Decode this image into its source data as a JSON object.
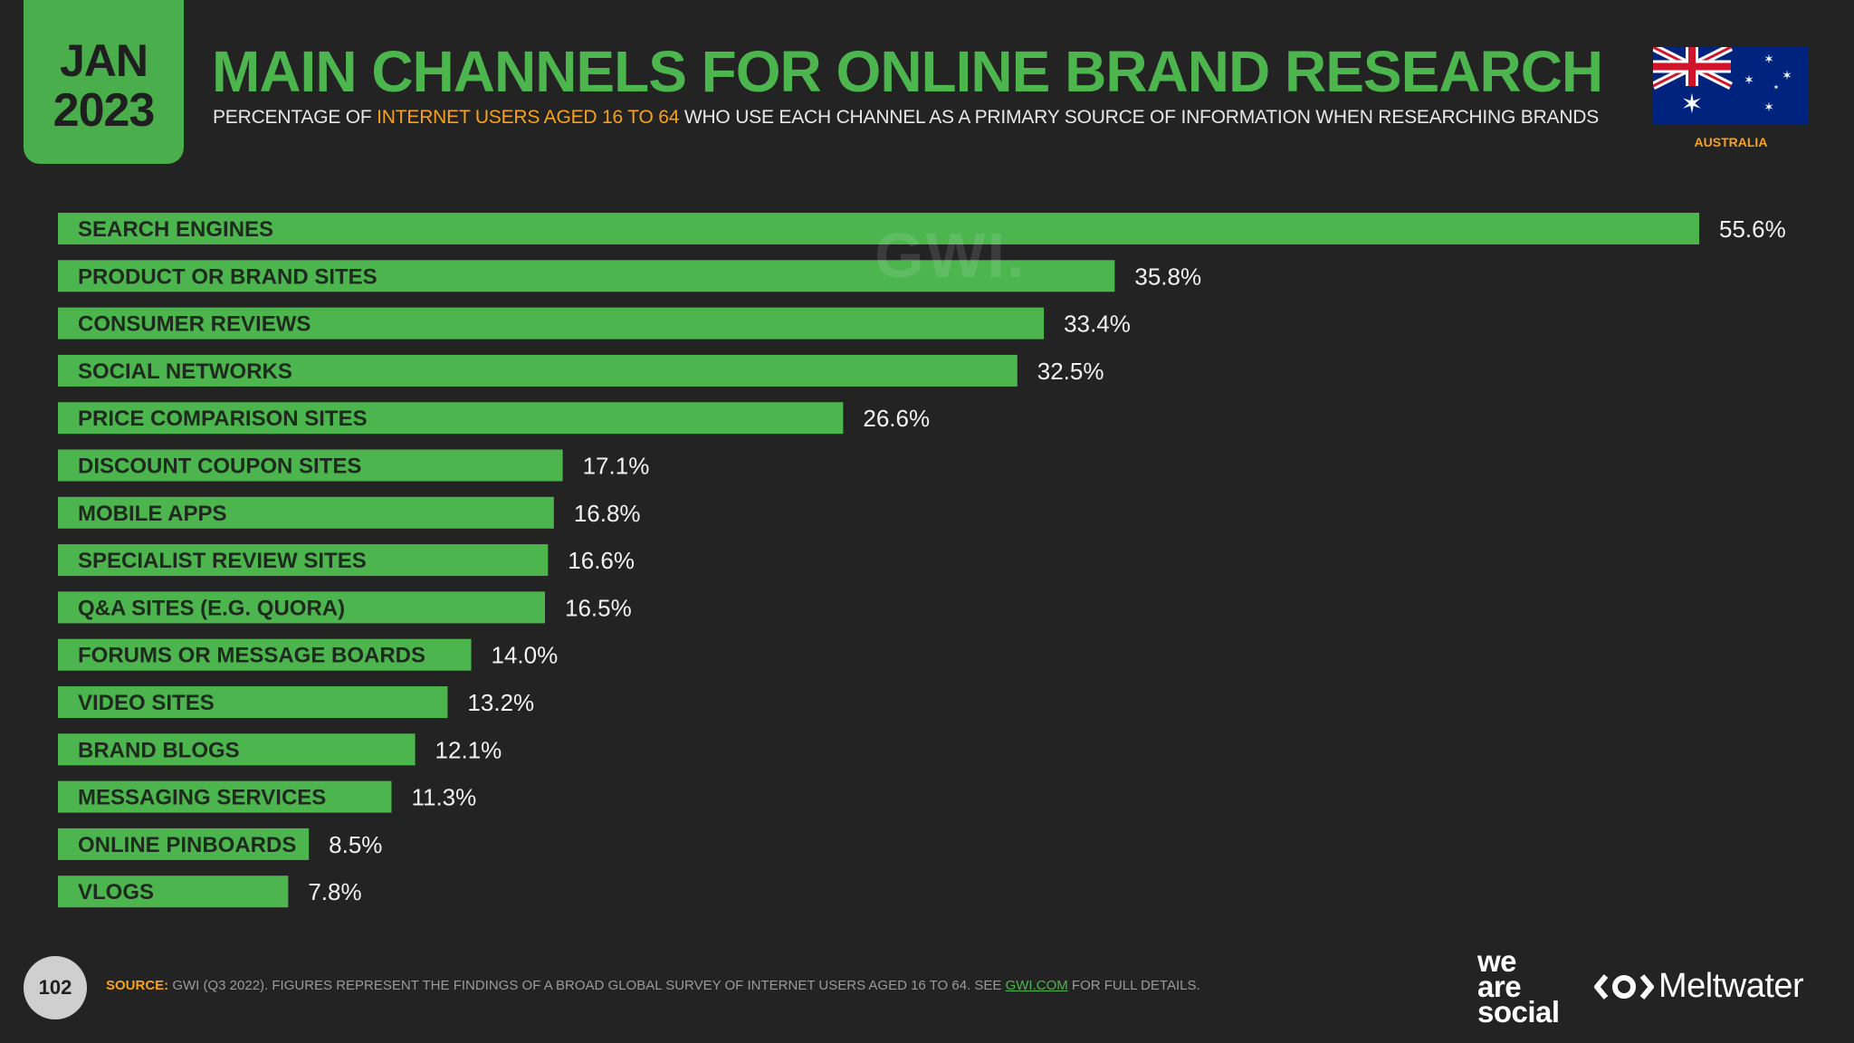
{
  "header": {
    "month": "JAN",
    "year": "2023",
    "title": "MAIN CHANNELS FOR ONLINE BRAND RESEARCH",
    "subtitle_pre": "PERCENTAGE OF ",
    "subtitle_highlight": "INTERNET USERS AGED 16 TO 64",
    "subtitle_post": " WHO USE EACH CHANNEL AS A PRIMARY SOURCE OF INFORMATION WHEN RESEARCHING BRANDS",
    "country": "AUSTRALIA"
  },
  "watermark": "GWI.",
  "colors": {
    "background": "#232323",
    "accent_green": "#4cb54e",
    "accent_orange": "#f7a21b"
  },
  "chart_data": {
    "type": "bar",
    "orientation": "horizontal",
    "title": "MAIN CHANNELS FOR ONLINE BRAND RESEARCH",
    "xlabel": "",
    "ylabel": "",
    "value_suffix": "%",
    "categories": [
      "SEARCH ENGINES",
      "PRODUCT OR BRAND SITES",
      "CONSUMER REVIEWS",
      "SOCIAL NETWORKS",
      "PRICE COMPARISON SITES",
      "DISCOUNT COUPON SITES",
      "MOBILE APPS",
      "SPECIALIST REVIEW SITES",
      "Q&A SITES (E.G. QUORA)",
      "FORUMS OR MESSAGE BOARDS",
      "VIDEO SITES",
      "BRAND BLOGS",
      "MESSAGING SERVICES",
      "ONLINE PINBOARDS",
      "VLOGS"
    ],
    "values": [
      55.6,
      35.8,
      33.4,
      32.5,
      26.6,
      17.1,
      16.8,
      16.6,
      16.5,
      14.0,
      13.2,
      12.1,
      11.3,
      8.5,
      7.8
    ],
    "value_labels": [
      "55.6%",
      "35.8%",
      "33.4%",
      "32.5%",
      "26.6%",
      "17.1%",
      "16.8%",
      "16.6%",
      "16.5%",
      "14.0%",
      "13.2%",
      "12.1%",
      "11.3%",
      "8.5%",
      "7.8%"
    ],
    "xlim": [
      0,
      55.6
    ],
    "grid": false,
    "legend": "none"
  },
  "footer": {
    "page_number": "102",
    "source_label": "SOURCE:",
    "source_text": " GWI (Q3 2022). FIGURES REPRESENT THE FINDINGS OF A BROAD GLOBAL SURVEY OF INTERNET USERS AGED 16 TO 64. SEE ",
    "source_link": "GWI.COM",
    "source_end": " FOR FULL DETAILS.",
    "brand1_line1": "we",
    "brand1_line2": "are",
    "brand1_line3": "social",
    "brand2": "Meltwater"
  }
}
